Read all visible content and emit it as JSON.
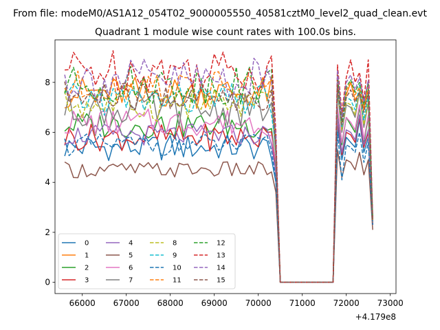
{
  "figure": {
    "suptitle": "From file: modeM0/AS1A12_054T02_9000005550_40581cztM0_level2_quad_clean.evt",
    "title": "Quadrant 1 module wise count rates with 100.0s bins."
  },
  "chart_data": {
    "type": "line",
    "xlim": [
      65380,
      73130
    ],
    "ylim": [
      -0.45,
      9.7
    ],
    "x_offset_label": "+4.179e8",
    "xticks": [
      66000,
      67000,
      68000,
      69000,
      70000,
      71000,
      72000,
      73000
    ],
    "xtick_labels": [
      "66000",
      "67000",
      "68000",
      "69000",
      "70000",
      "71000",
      "72000",
      "73000"
    ],
    "yticks": [
      0,
      2,
      4,
      6,
      8
    ],
    "ytick_labels": [
      "0",
      "2",
      "4",
      "6",
      "8"
    ],
    "grid": false,
    "legend": {
      "placement": "lower-left",
      "columns": 4
    },
    "segments": {
      "seg1_x": [
        65600,
        70400,
        100
      ],
      "gap_ramp_x": [
        70500
      ],
      "zero_x": [
        70500,
        71700,
        100
      ],
      "seg2_x": [
        71800,
        72650,
        100
      ]
    },
    "series": [
      {
        "name": "0",
        "color": "#1f77b4",
        "dash": "solid",
        "base": 5.4,
        "amp": 0.25,
        "drop": 4.0,
        "seg2": [
          6.3,
          4.9,
          5.8,
          5.6,
          5.4,
          6.5,
          5.2,
          5.8,
          2.3
        ]
      },
      {
        "name": "1",
        "color": "#ff7f0e",
        "dash": "solid",
        "base": 7.6,
        "amp": 0.3,
        "drop": 5.5,
        "seg2": [
          8.0,
          6.7,
          7.5,
          8.0,
          7.3,
          7.6,
          6.9,
          7.7,
          2.5
        ]
      },
      {
        "name": "2",
        "color": "#2ca02c",
        "dash": "solid",
        "base": 6.3,
        "amp": 0.25,
        "drop": 4.7,
        "seg2": [
          6.9,
          5.5,
          6.6,
          6.3,
          6.0,
          7.0,
          5.6,
          6.6,
          2.4
        ]
      },
      {
        "name": "3",
        "color": "#d62728",
        "dash": "solid",
        "base": 5.8,
        "amp": 0.25,
        "drop": 4.3,
        "seg2": [
          6.5,
          5.1,
          6.0,
          5.9,
          5.6,
          6.6,
          5.4,
          6.0,
          2.3
        ]
      },
      {
        "name": "4",
        "color": "#9467bd",
        "dash": "solid",
        "base": 5.9,
        "amp": 0.2,
        "drop": 4.4,
        "seg2": [
          6.6,
          5.2,
          6.1,
          6.0,
          5.7,
          6.7,
          5.5,
          6.1,
          2.3
        ]
      },
      {
        "name": "5",
        "color": "#8c564b",
        "dash": "solid",
        "base": 4.5,
        "amp": 0.15,
        "drop": 3.6,
        "seg2": [
          5.3,
          4.2,
          4.9,
          4.8,
          4.5,
          5.2,
          4.3,
          4.9,
          2.1
        ]
      },
      {
        "name": "6",
        "color": "#e377c2",
        "dash": "solid",
        "base": 6.4,
        "amp": 0.25,
        "drop": 4.8,
        "seg2": [
          7.0,
          5.6,
          6.6,
          6.4,
          6.1,
          7.1,
          5.7,
          6.7,
          2.4
        ]
      },
      {
        "name": "7",
        "color": "#7f7f7f",
        "dash": "solid",
        "base": 6.9,
        "amp": 0.3,
        "drop": 5.1,
        "seg2": [
          7.6,
          6.0,
          7.1,
          7.0,
          6.6,
          7.6,
          6.2,
          7.2,
          2.4
        ]
      },
      {
        "name": "8",
        "color": "#bcbd22",
        "dash": "dashed",
        "base": 7.1,
        "amp": 0.3,
        "drop": 5.2,
        "seg2": [
          7.7,
          6.1,
          7.2,
          7.1,
          6.7,
          7.7,
          6.3,
          7.3,
          2.5
        ]
      },
      {
        "name": "9",
        "color": "#17becf",
        "dash": "dashed",
        "base": 7.3,
        "amp": 0.3,
        "drop": 5.4,
        "seg2": [
          7.8,
          6.2,
          7.4,
          7.3,
          6.9,
          7.9,
          6.5,
          7.5,
          2.5
        ]
      },
      {
        "name": "10",
        "color": "#1f77b4",
        "dash": "dashed",
        "base": 5.5,
        "amp": 0.2,
        "drop": 4.1,
        "seg2": [
          6.0,
          4.1,
          5.5,
          5.4,
          5.2,
          6.0,
          4.8,
          5.6,
          2.3
        ]
      },
      {
        "name": "11",
        "color": "#ff7f0e",
        "dash": "dashed",
        "base": 7.8,
        "amp": 0.3,
        "drop": 5.6,
        "seg2": [
          8.2,
          6.5,
          7.7,
          8.0,
          7.5,
          7.8,
          7.0,
          7.9,
          2.5
        ]
      },
      {
        "name": "12",
        "color": "#2ca02c",
        "dash": "dashed",
        "base": 7.9,
        "amp": 0.35,
        "drop": 5.7,
        "seg2": [
          8.3,
          6.4,
          7.8,
          8.1,
          7.6,
          8.0,
          7.1,
          8.0,
          2.6
        ]
      },
      {
        "name": "13",
        "color": "#d62728",
        "dash": "dashed",
        "base": 8.5,
        "amp": 0.4,
        "drop": 6.0,
        "seg2": [
          8.7,
          6.8,
          8.2,
          8.9,
          8.0,
          8.4,
          7.3,
          8.9,
          2.6
        ]
      },
      {
        "name": "14",
        "color": "#9467bd",
        "dash": "dashed",
        "base": 8.1,
        "amp": 0.4,
        "drop": 5.8,
        "seg2": [
          8.5,
          6.6,
          8.0,
          8.3,
          7.7,
          8.2,
          7.2,
          8.1,
          2.6
        ]
      },
      {
        "name": "15",
        "color": "#8c564b",
        "dash": "dashed",
        "base": 7.4,
        "amp": 0.3,
        "drop": 5.3,
        "seg2": [
          7.9,
          6.3,
          7.4,
          7.7,
          7.2,
          7.6,
          6.8,
          7.6,
          2.5
        ]
      }
    ]
  }
}
